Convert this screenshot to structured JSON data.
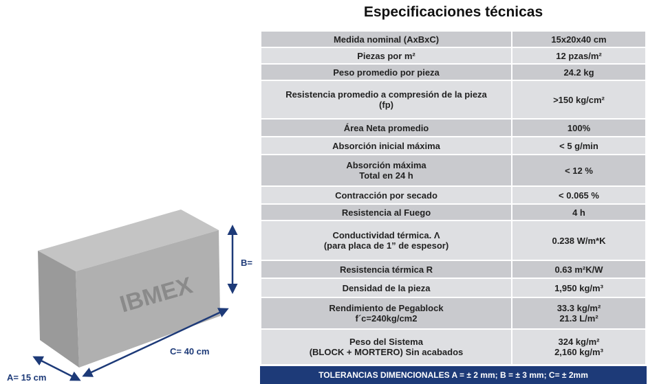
{
  "title": "Especificaciones técnicas",
  "table": {
    "rows": [
      [
        "Medida nominal (AxBxC)",
        "15x20x40 cm"
      ],
      [
        "Piezas por m²",
        "12 pzas/m²"
      ],
      [
        "Peso promedio por pieza",
        "24.2 kg"
      ],
      [
        "Resistencia promedio a compresión de la pieza\n(fp)",
        ">150 kg/cm²"
      ],
      [
        "Área Neta promedio",
        "100%"
      ],
      [
        "Absorción inicial máxima",
        "< 5 g/min"
      ],
      [
        "Absorción  máxima\nTotal en 24 h",
        "< 12 %"
      ],
      [
        "Contracción por secado",
        "< 0.065 %"
      ],
      [
        "Resistencia al Fuego",
        "4 h"
      ],
      [
        "Conductividad térmica. Λ\n(para placa de 1” de espesor)",
        "0.238 W/m*K"
      ],
      [
        "Resistencia térmica R",
        "0.63 m²K/W"
      ],
      [
        "Densidad de la pieza",
        "1,950 kg/m³"
      ],
      [
        "Rendimiento de Pegablock\nf´c=240kg/cm2",
        "33.3 kg/m²\n21.3 L/m²"
      ],
      [
        "Peso del Sistema\n(BLOCK + MORTERO) Sin acabados",
        "324 kg/m²\n2,160 kg/m³"
      ]
    ],
    "footer": "TOLERANCIAS DIMENCIONALES  A = ± 2 mm;  B = ± 3 mm;  C= ± 2mm"
  },
  "block": {
    "brand": "IBMEX",
    "label_a": "A= 15 cm",
    "label_b": "B=",
    "label_c": "C= 40 cm"
  }
}
